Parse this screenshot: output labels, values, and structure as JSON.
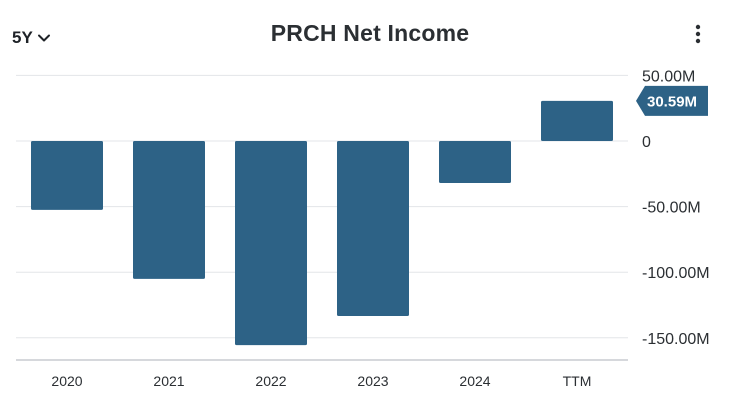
{
  "header": {
    "period_label": "5Y",
    "period_icon": "chevron-down-icon",
    "title": "PRCH Net Income",
    "menu_icon": "more-vertical-icon"
  },
  "colors": {
    "bar": "#2d6286",
    "grid": "#e3e5e8",
    "baseline": "#c8ccd1",
    "tag": "#2d6286"
  },
  "chart_data": {
    "type": "bar",
    "title": "PRCH Net Income",
    "categories": [
      "2020",
      "2021",
      "2022",
      "2023",
      "2024",
      "TTM"
    ],
    "series": [
      {
        "values": [
          -52.5,
          -105.1,
          -155.6,
          -133.4,
          -32.0,
          30.59
        ]
      }
    ],
    "ylim": [
      -160,
      50
    ],
    "yticks": [
      50,
      0,
      -50,
      -100,
      -150
    ],
    "ytick_labels": [
      "50.00M",
      "0",
      "-50.00M",
      "-100.00M",
      "-150.00M"
    ],
    "value_tag": "30.59M",
    "axis_position": "right",
    "grid": true,
    "xlabel": "",
    "ylabel": ""
  }
}
